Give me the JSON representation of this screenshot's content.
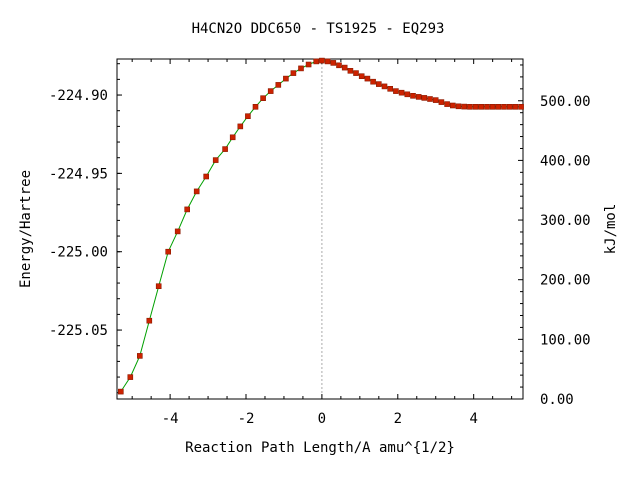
{
  "chart_data": {
    "type": "line",
    "title": "H4CN2O   DDC650 - TS1925 - EQ293",
    "xlabel": "Reaction Path Length/A amu^{1/2}",
    "ylabel": "Energy/Hartree",
    "y2label": "kJ/mol",
    "xlim": [
      -5.4,
      5.3
    ],
    "ylim": [
      -225.094,
      -224.877
    ],
    "y2lim": [
      0,
      570
    ],
    "x_ticks": [
      {
        "value": -4,
        "label": "-4"
      },
      {
        "value": -2,
        "label": "-2"
      },
      {
        "value": 0,
        "label": "0"
      },
      {
        "value": 2,
        "label": "2"
      },
      {
        "value": 4,
        "label": "4"
      }
    ],
    "y_ticks": [
      {
        "value": -224.9,
        "label": "-224.90"
      },
      {
        "value": -224.95,
        "label": "-224.95"
      },
      {
        "value": -225.0,
        "label": "-225.00"
      },
      {
        "value": -225.05,
        "label": "-225.05"
      }
    ],
    "y2_ticks": [
      {
        "value": 0,
        "label": "0.00"
      },
      {
        "value": 100,
        "label": "100.00"
      },
      {
        "value": 200,
        "label": "200.00"
      },
      {
        "value": 300,
        "label": "300.00"
      },
      {
        "value": 400,
        "label": "400.00"
      },
      {
        "value": 500,
        "label": "500.00"
      }
    ],
    "grid": false,
    "legend": "none",
    "ts_marker_x": 0,
    "colors": {
      "line": "#00a000",
      "marker": "#cc2200",
      "marker_edge": "#8b1a00",
      "ts_line": "#aaaaaa",
      "axis": "#000000"
    },
    "series": [
      {
        "x": [
          -5.3,
          -5.05,
          -4.8,
          -4.55,
          -4.3,
          -4.05,
          -3.8,
          -3.55,
          -3.3,
          -3.05,
          -2.8,
          -2.55,
          -2.35,
          -2.15,
          -1.95,
          -1.75,
          -1.55,
          -1.35,
          -1.15,
          -0.95,
          -0.75,
          -0.55,
          -0.35,
          -0.15,
          0.0,
          0.15,
          0.3,
          0.45,
          0.6,
          0.75,
          0.9,
          1.05,
          1.2,
          1.35,
          1.5,
          1.65,
          1.8,
          1.95,
          2.1,
          2.25,
          2.4,
          2.55,
          2.7,
          2.85,
          3.0,
          3.15,
          3.3,
          3.45,
          3.6,
          3.75,
          3.9,
          4.05,
          4.2,
          4.35,
          4.5,
          4.65,
          4.8,
          4.95,
          5.1,
          5.25
        ],
        "y": [
          -225.0893,
          -225.08,
          -225.0665,
          -225.044,
          -225.022,
          -225.0,
          -224.987,
          -224.973,
          -224.9615,
          -224.952,
          -224.9415,
          -224.9345,
          -224.927,
          -224.92,
          -224.9135,
          -224.9075,
          -224.902,
          -224.8975,
          -224.8935,
          -224.8895,
          -224.886,
          -224.883,
          -224.8805,
          -224.8785,
          -224.878,
          -224.8785,
          -224.8795,
          -224.881,
          -224.8825,
          -224.8845,
          -224.886,
          -224.888,
          -224.8895,
          -224.8915,
          -224.893,
          -224.8945,
          -224.896,
          -224.8975,
          -224.8985,
          -224.8995,
          -224.9005,
          -224.9012,
          -224.9018,
          -224.9025,
          -224.9032,
          -224.9045,
          -224.9058,
          -224.9067,
          -224.9072,
          -224.9074,
          -224.9075,
          -224.9075,
          -224.9075,
          -224.9075,
          -224.9075,
          -224.9075,
          -224.9075,
          -224.9075,
          -224.9075,
          -224.9075
        ]
      }
    ]
  }
}
